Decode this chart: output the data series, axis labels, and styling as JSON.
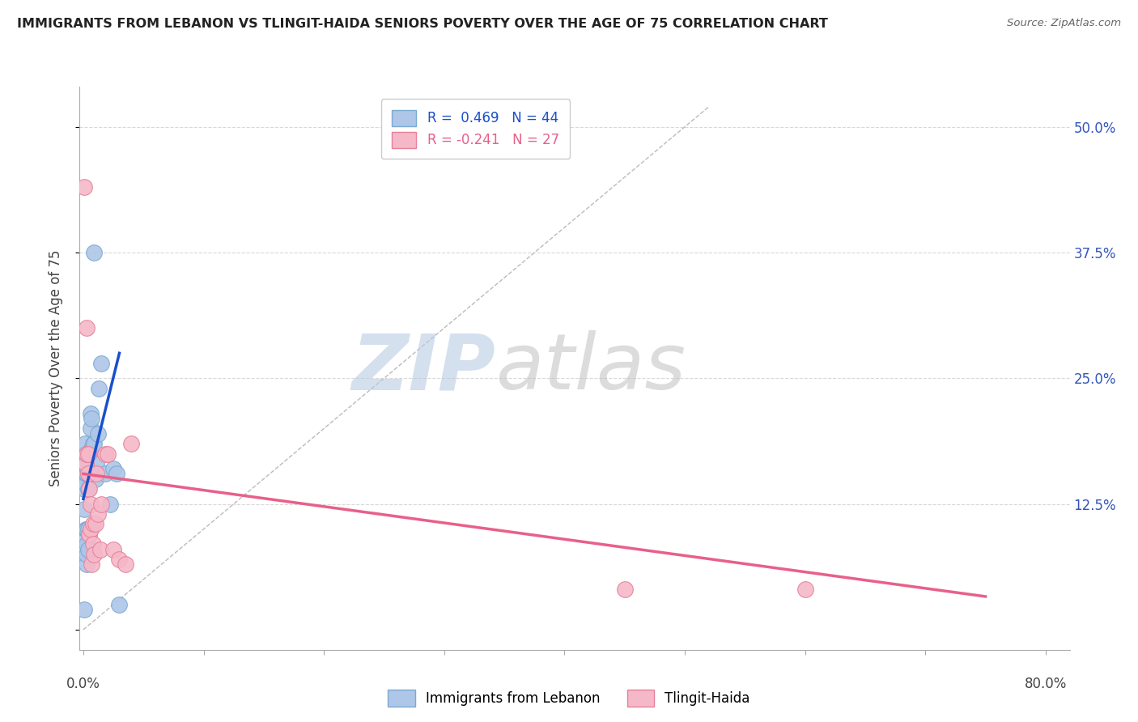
{
  "title": "IMMIGRANTS FROM LEBANON VS TLINGIT-HAIDA SENIORS POVERTY OVER THE AGE OF 75 CORRELATION CHART",
  "source": "Source: ZipAtlas.com",
  "ylabel": "Seniors Poverty Over the Age of 75",
  "yticks": [
    0.0,
    0.125,
    0.25,
    0.375,
    0.5
  ],
  "ytick_labels": [
    "",
    "12.5%",
    "25.0%",
    "37.5%",
    "50.0%"
  ],
  "xlim": [
    -0.003,
    0.82
  ],
  "ylim": [
    -0.02,
    0.54
  ],
  "legend_r1": "R =  0.469   N = 44",
  "legend_r2": "R = -0.241   N = 27",
  "blue_color": "#aec6e8",
  "pink_color": "#f5b8c8",
  "blue_edge_color": "#7aaad0",
  "pink_edge_color": "#e8809a",
  "blue_line_color": "#1a4fcc",
  "pink_line_color": "#e8608a",
  "blue_scatter_x": [
    0.0005,
    0.001,
    0.001,
    0.0012,
    0.0012,
    0.0013,
    0.0015,
    0.0015,
    0.0015,
    0.002,
    0.002,
    0.002,
    0.002,
    0.002,
    0.002,
    0.003,
    0.003,
    0.003,
    0.003,
    0.003,
    0.003,
    0.004,
    0.004,
    0.004,
    0.004,
    0.005,
    0.005,
    0.006,
    0.006,
    0.007,
    0.007,
    0.008,
    0.009,
    0.009,
    0.01,
    0.011,
    0.012,
    0.013,
    0.015,
    0.018,
    0.022,
    0.025,
    0.028,
    0.03
  ],
  "blue_scatter_y": [
    0.02,
    0.12,
    0.14,
    0.155,
    0.16,
    0.165,
    0.17,
    0.175,
    0.185,
    0.08,
    0.09,
    0.1,
    0.145,
    0.155,
    0.165,
    0.065,
    0.075,
    0.085,
    0.1,
    0.155,
    0.175,
    0.08,
    0.1,
    0.14,
    0.155,
    0.095,
    0.175,
    0.2,
    0.215,
    0.18,
    0.21,
    0.185,
    0.185,
    0.375,
    0.15,
    0.165,
    0.195,
    0.24,
    0.265,
    0.155,
    0.125,
    0.16,
    0.155,
    0.025
  ],
  "pink_scatter_x": [
    0.001,
    0.002,
    0.003,
    0.003,
    0.004,
    0.004,
    0.005,
    0.005,
    0.006,
    0.006,
    0.007,
    0.008,
    0.008,
    0.009,
    0.01,
    0.011,
    0.012,
    0.014,
    0.015,
    0.018,
    0.02,
    0.025,
    0.03,
    0.035,
    0.04,
    0.45,
    0.6
  ],
  "pink_scatter_y": [
    0.44,
    0.165,
    0.175,
    0.3,
    0.155,
    0.175,
    0.095,
    0.14,
    0.1,
    0.125,
    0.065,
    0.085,
    0.105,
    0.075,
    0.105,
    0.155,
    0.115,
    0.08,
    0.125,
    0.175,
    0.175,
    0.08,
    0.07,
    0.065,
    0.185,
    0.04,
    0.04
  ],
  "blue_trend_x": [
    0.0,
    0.03
  ],
  "blue_trend_y": [
    0.13,
    0.275
  ],
  "pink_trend_x": [
    0.0,
    0.75
  ],
  "pink_trend_y": [
    0.155,
    0.033
  ],
  "diag_line_x": [
    0.0,
    0.52
  ],
  "diag_line_y": [
    0.0,
    0.52
  ],
  "bg_color": "#ffffff",
  "grid_color": "#d8d8d8"
}
